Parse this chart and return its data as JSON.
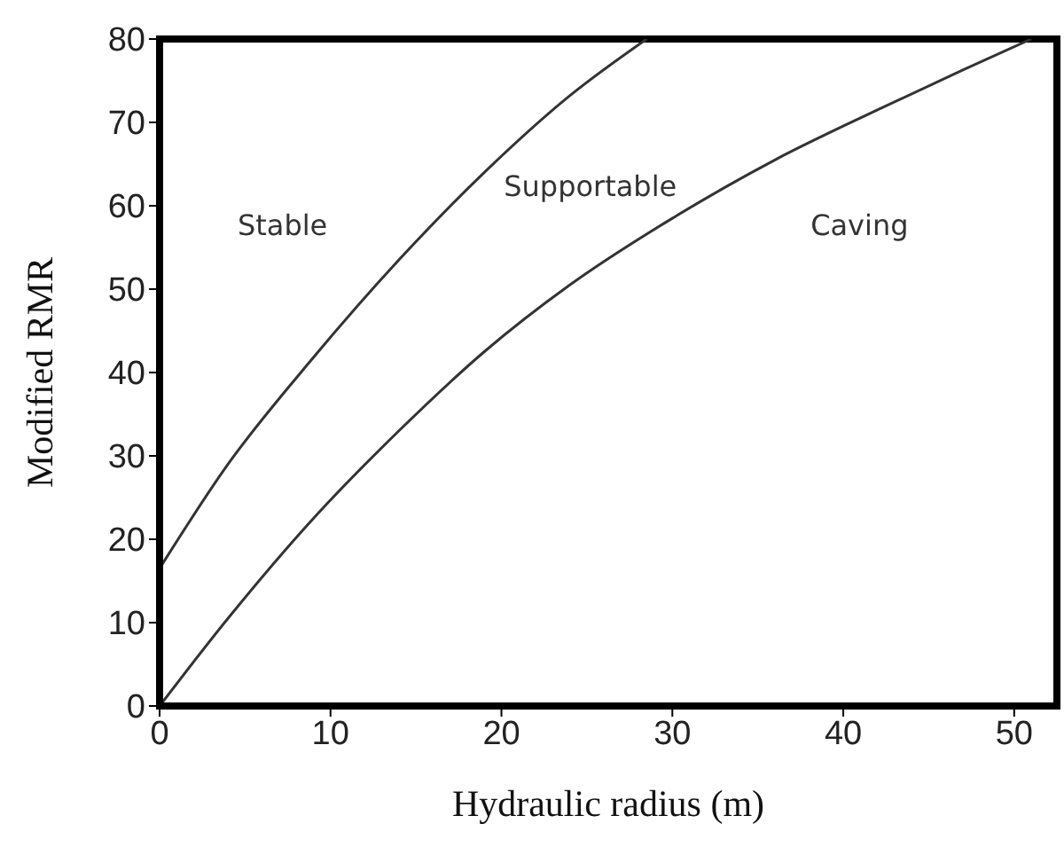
{
  "chart_data": {
    "type": "line",
    "xlabel": "Hydraulic radius (m)",
    "ylabel": "Modified RMR",
    "xlim": [
      0,
      52.5
    ],
    "xticks": [
      0,
      10,
      20,
      30,
      40,
      50
    ],
    "ylim": [
      0,
      80
    ],
    "yticks": [
      0,
      10,
      20,
      30,
      40,
      50,
      60,
      70,
      80
    ],
    "grid": false,
    "legend": false,
    "marker": "none",
    "line_style": "solid",
    "series": [
      {
        "color": "#333333",
        "x": [
          0,
          4,
          9,
          14,
          19,
          24,
          28.5
        ],
        "values": [
          16.5,
          29,
          41.8,
          53.5,
          64,
          73.2,
          80
        ]
      },
      {
        "color": "#333333",
        "x": [
          0,
          4,
          9,
          14,
          19,
          24,
          30,
          36,
          42,
          47,
          51
        ],
        "values": [
          0,
          10.5,
          22.5,
          33,
          42.5,
          50.5,
          58.5,
          65.5,
          71.5,
          76.3,
          80
        ]
      }
    ],
    "annotations": [
      "Stable",
      "Supportable",
      "Caving"
    ]
  }
}
